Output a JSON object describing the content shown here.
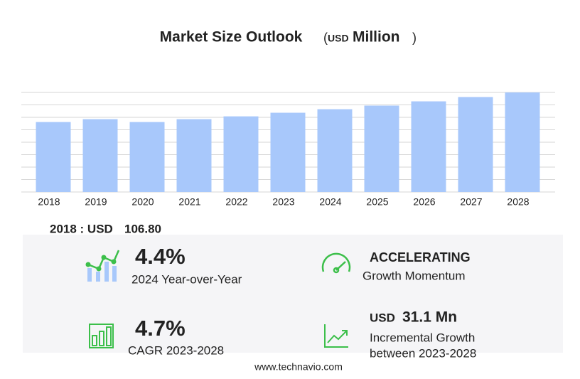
{
  "chart_data": {
    "type": "bar",
    "title": "Market Size Outlook",
    "unit": {
      "open": "(",
      "currency": "USD",
      "label": "Million",
      "close": ")"
    },
    "categories": [
      "2018",
      "2019",
      "2020",
      "2021",
      "2022",
      "2023",
      "2024",
      "2025",
      "2026",
      "2027",
      "2028"
    ],
    "values": [
      106.8,
      111.2,
      106.8,
      111.2,
      115.5,
      121,
      126.4,
      131.9,
      138.4,
      145,
      152
    ],
    "color": "#a8c8fb",
    "ylim": [
      0,
      152
    ],
    "yticks": [
      0,
      19,
      38,
      57,
      76,
      95,
      114,
      133,
      152
    ],
    "grid": true
  },
  "highlight": {
    "label": "2018 : USD",
    "value": "106.80"
  },
  "stats": [
    {
      "value": "4.4%",
      "caption": "2024 Year-over-Year"
    },
    {
      "value": "ACCELERATING",
      "caption": "Growth Momentum"
    },
    {
      "value": "4.7%",
      "caption": "CAGR 2023-2028"
    },
    {
      "currency": "USD",
      "value": "31.1 Mn",
      "caption": "Incremental Growth",
      "caption2": "between 2023-2028"
    }
  ],
  "footer": "www.technavio.com"
}
